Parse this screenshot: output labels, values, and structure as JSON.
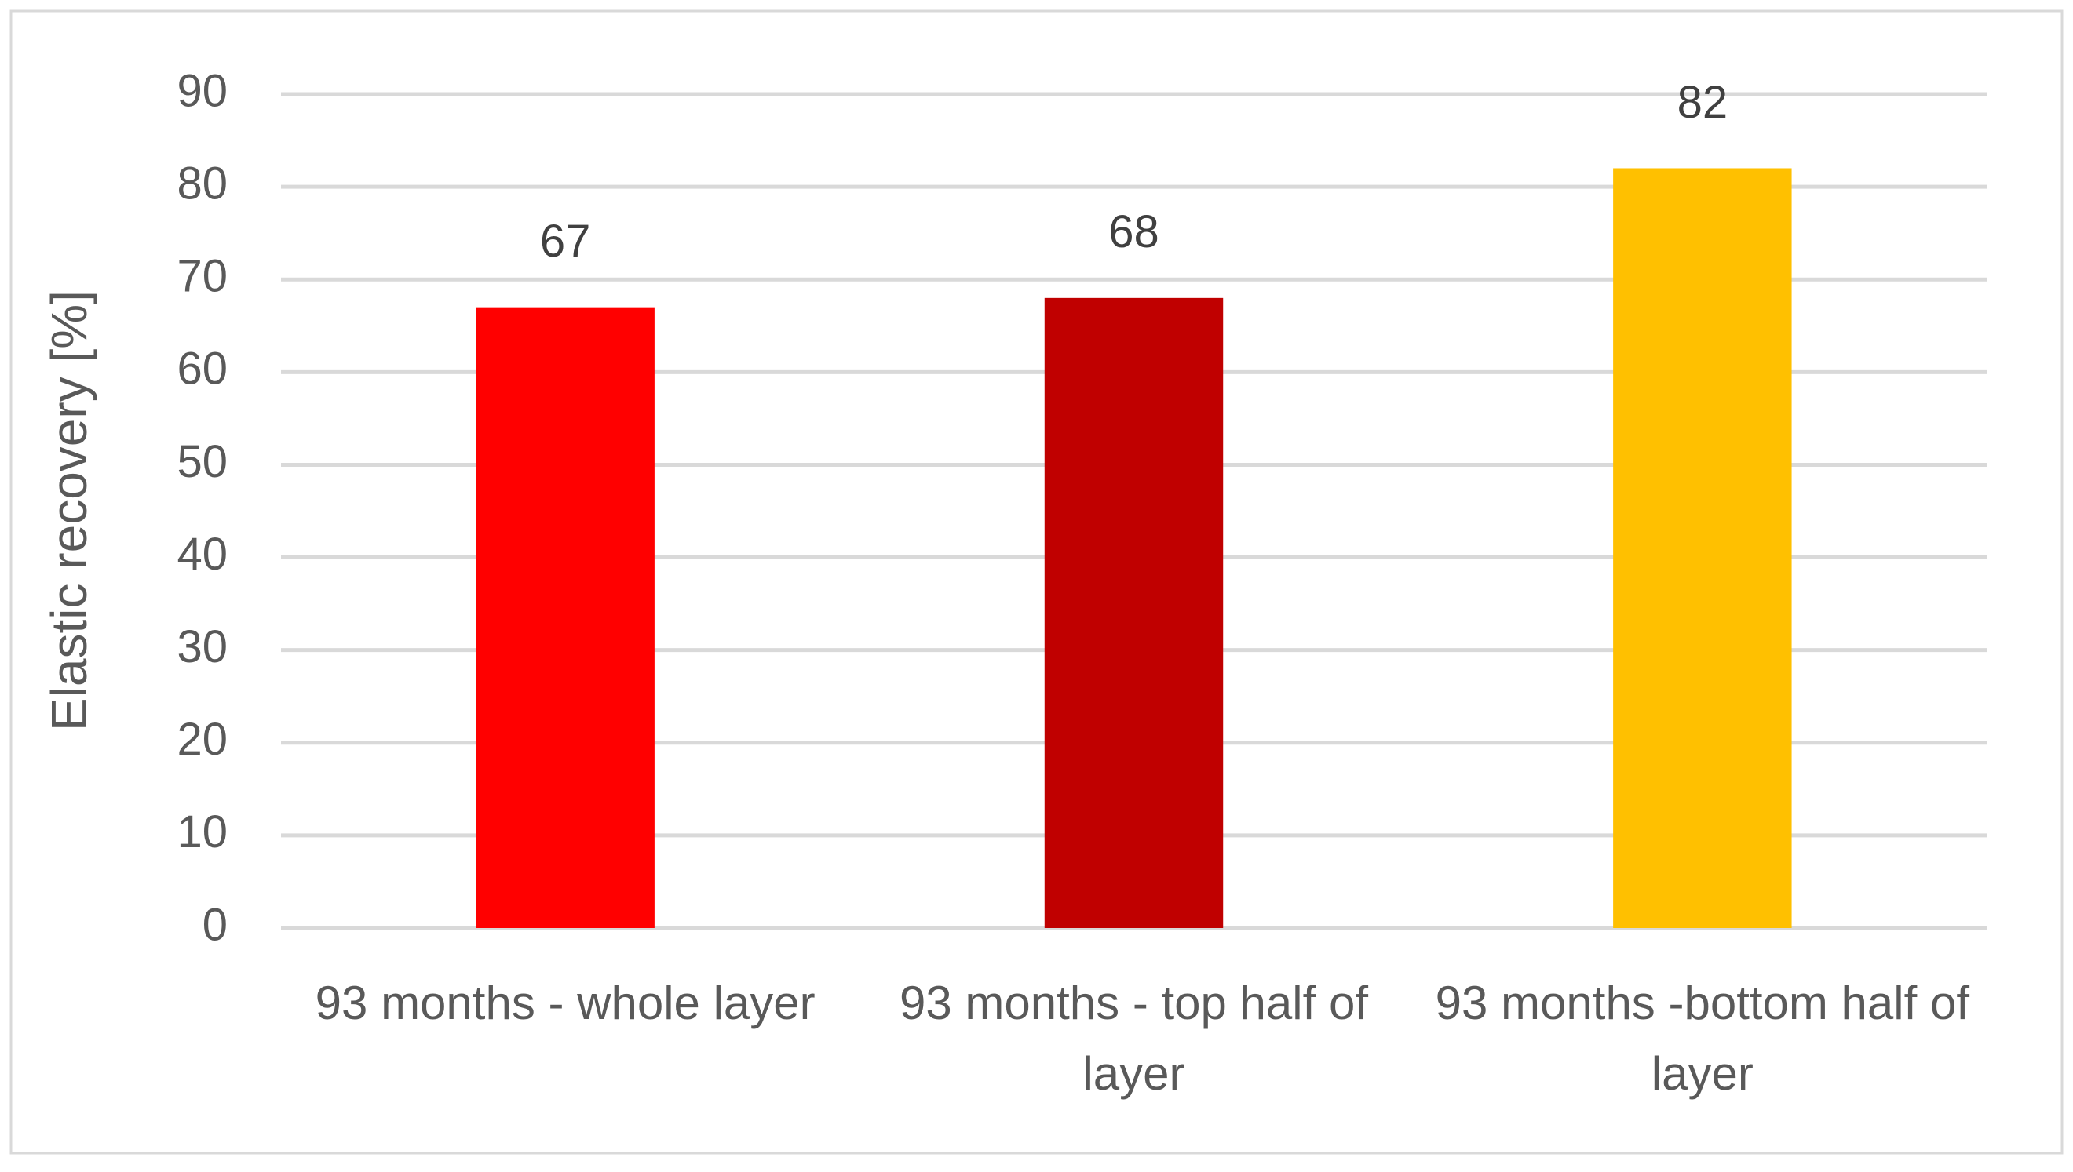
{
  "chart_data": {
    "type": "bar",
    "y_axis_label": "Elastic recovery [%]",
    "categories": [
      "93 months - whole layer",
      "93 months - top half of layer",
      "93 months -bottom half of layer"
    ],
    "values": [
      67,
      68,
      82
    ],
    "colors": [
      "#ff0000",
      "#c00000",
      "#ffc000"
    ],
    "ylim": [
      0,
      90
    ],
    "yticks": [
      0,
      10,
      20,
      30,
      40,
      50,
      60,
      70,
      80,
      90
    ],
    "grid": true
  }
}
